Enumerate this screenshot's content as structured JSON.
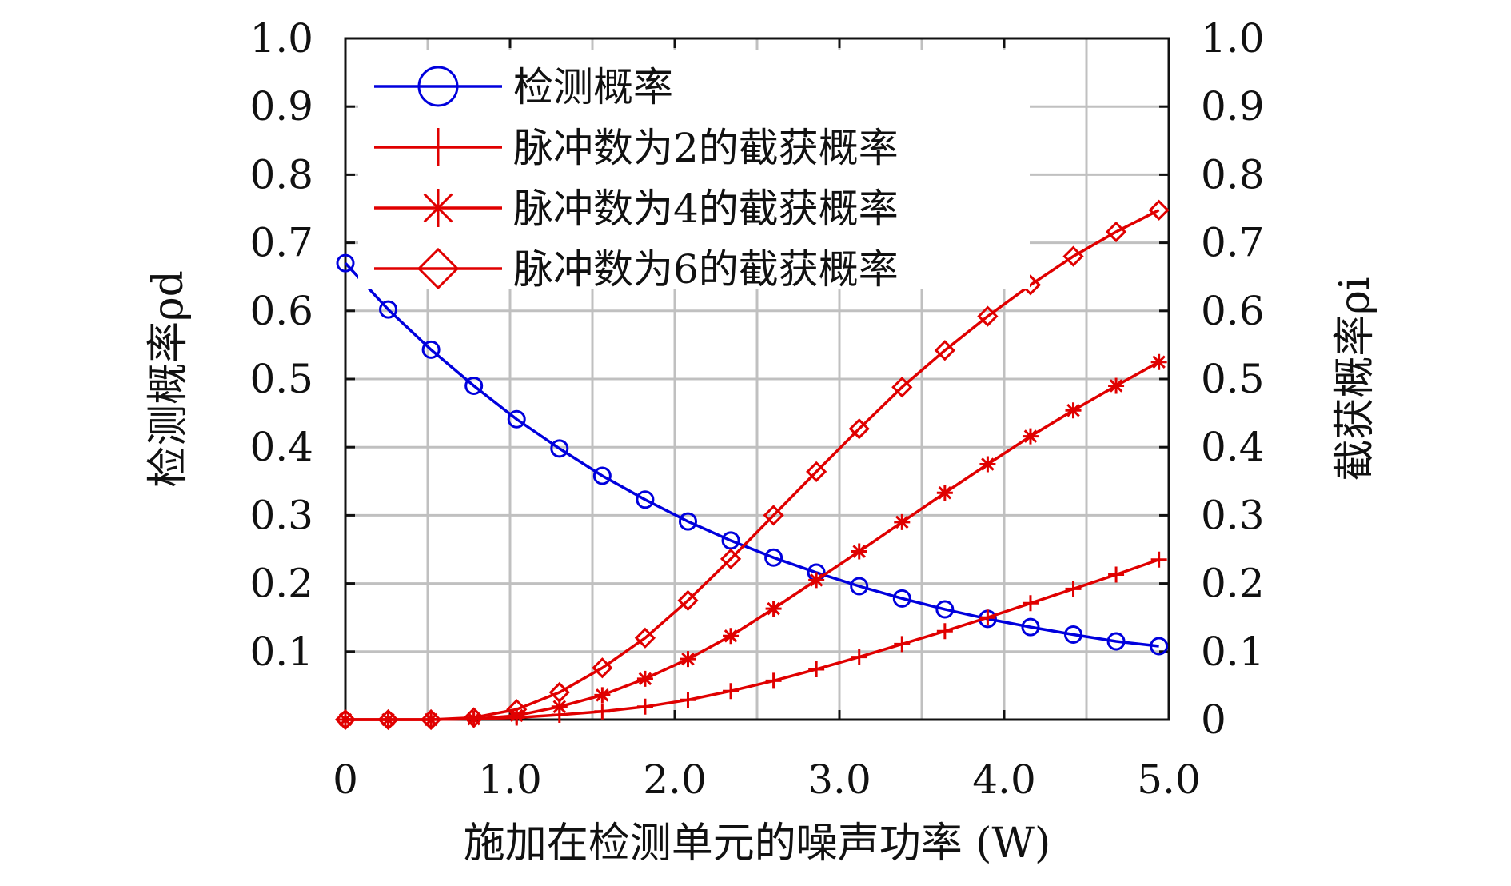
{
  "chart_data": {
    "type": "line",
    "title": "",
    "xlabel": "施加在检测单元的噪声功率 (W)",
    "ylabel_left": "检测概率ρd",
    "ylabel_right": "截获概率ρi",
    "xlim": [
      0,
      5.0
    ],
    "ylim": [
      0,
      1.0
    ],
    "x_tick_labels": [
      "0",
      "1.0",
      "2.0",
      "3.0",
      "4.0",
      "5.0"
    ],
    "y_left_tick_labels": [
      "0.1",
      "0.2",
      "0.3",
      "0.4",
      "0.5",
      "0.6",
      "0.7",
      "0.8",
      "0.9",
      "1.0"
    ],
    "y_right_tick_labels": [
      "0",
      "0.1",
      "0.2",
      "0.3",
      "0.4",
      "0.5",
      "0.6",
      "0.7",
      "0.8",
      "0.9",
      "1.0"
    ],
    "grid": true,
    "legend_position": "top-left",
    "x": [
      0.0,
      0.26,
      0.52,
      0.78,
      1.04,
      1.3,
      1.56,
      1.82,
      2.08,
      2.34,
      2.6,
      2.86,
      3.12,
      3.38,
      3.64,
      3.9,
      4.16,
      4.42,
      4.68,
      4.94
    ],
    "series": [
      {
        "name": "检测概率",
        "color": "#0000dd",
        "marker": "circle",
        "values": [
          0.67,
          0.602,
          0.543,
          0.49,
          0.441,
          0.398,
          0.358,
          0.323,
          0.291,
          0.263,
          0.238,
          0.216,
          0.196,
          0.178,
          0.162,
          0.148,
          0.136,
          0.125,
          0.115,
          0.108
        ]
      },
      {
        "name": "脉冲数为2的截获概率",
        "color": "#e00000",
        "marker": "plus",
        "values": [
          0.0,
          0.0,
          0.0,
          0.001,
          0.003,
          0.007,
          0.012,
          0.019,
          0.029,
          0.042,
          0.057,
          0.074,
          0.092,
          0.111,
          0.13,
          0.15,
          0.171,
          0.192,
          0.213,
          0.235
        ]
      },
      {
        "name": "脉冲数为4的截获概率",
        "color": "#e00000",
        "marker": "asterisk",
        "values": [
          0.0,
          0.0,
          0.0,
          0.001,
          0.006,
          0.019,
          0.036,
          0.06,
          0.089,
          0.123,
          0.163,
          0.205,
          0.247,
          0.29,
          0.333,
          0.375,
          0.416,
          0.454,
          0.49,
          0.525
        ]
      },
      {
        "name": "脉冲数为6的截获概率",
        "color": "#e00000",
        "marker": "diamond",
        "values": [
          0.0,
          0.0,
          0.0,
          0.003,
          0.015,
          0.04,
          0.076,
          0.12,
          0.175,
          0.236,
          0.3,
          0.364,
          0.427,
          0.488,
          0.542,
          0.592,
          0.638,
          0.68,
          0.716,
          0.748
        ]
      }
    ]
  }
}
